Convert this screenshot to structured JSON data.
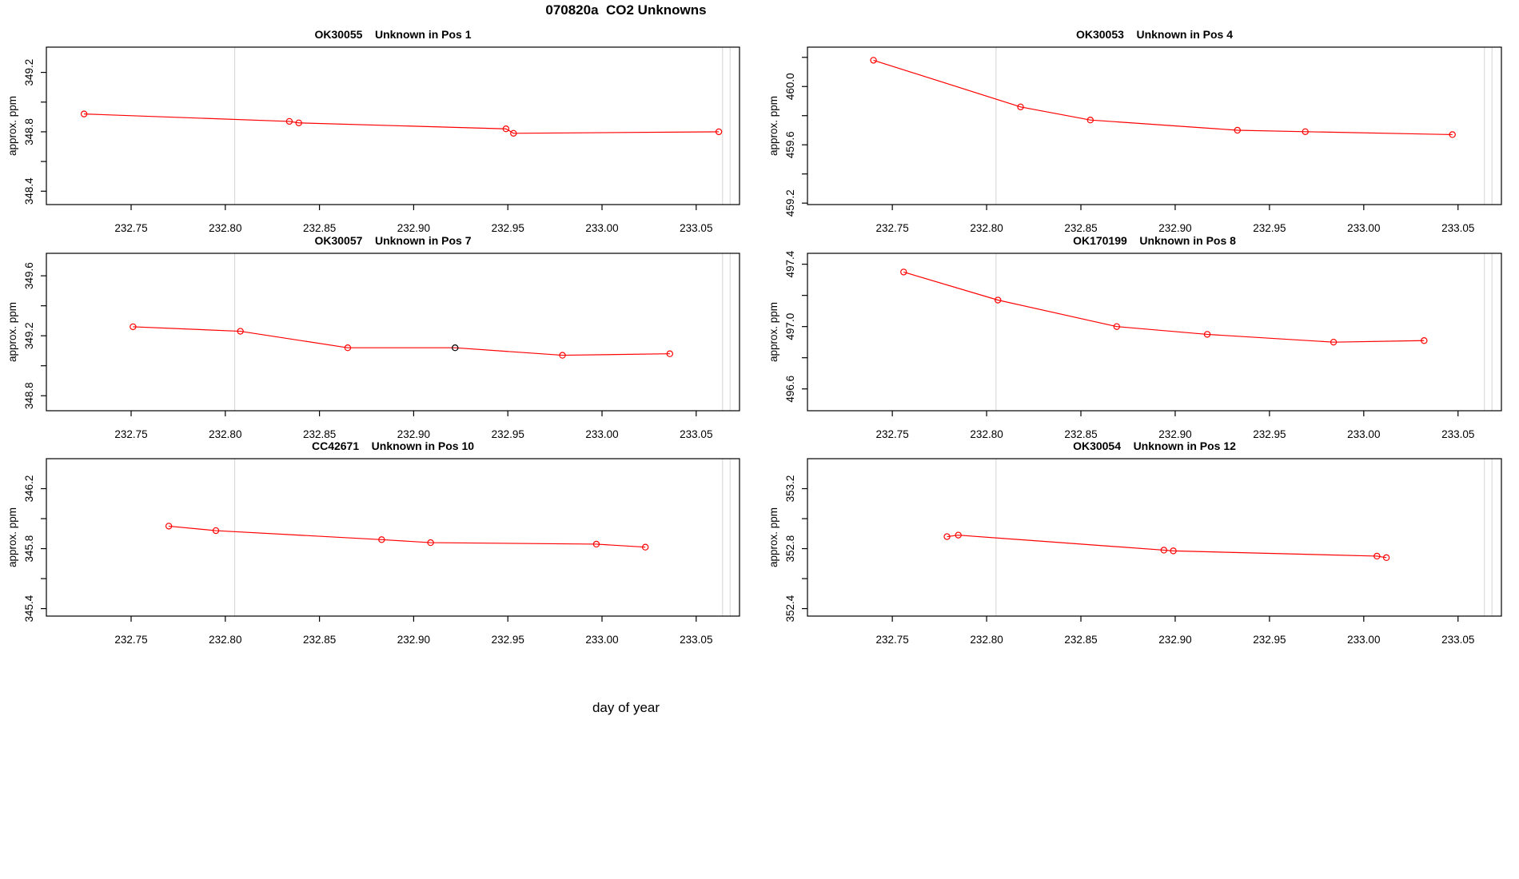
{
  "page": {
    "main_title": "070820a  CO2 Unknowns",
    "bottom_axis_label": "day of year"
  },
  "style": {
    "series_color": "#ff0000",
    "reference_line_color": "#d4d4d4",
    "special_point_color": "#000000",
    "text_color": "#000000",
    "background": "#ffffff"
  },
  "chart_data": [
    {
      "type": "line",
      "title": "OK30055    Unknown in Pos 1",
      "sample_id": "OK30055",
      "position_label": "Unknown in Pos 1",
      "ylabel": "approx. ppm",
      "xlim": [
        232.705,
        233.073
      ],
      "ylim": [
        348.31,
        349.37
      ],
      "x_tick_values": [
        232.75,
        232.8,
        232.85,
        232.9,
        232.95,
        233.0,
        233.05
      ],
      "x_tick_labels": [
        "232.75",
        "232.80",
        "232.85",
        "232.90",
        "232.95",
        "233.00",
        "233.05"
      ],
      "y_tick_values": [
        348.4,
        348.8,
        349.2
      ],
      "y_tick_labels": [
        "348.4",
        "348.8",
        "349.2"
      ],
      "y_minor_tick_values": [
        348.6,
        349.0
      ],
      "reference_lines_x": [
        232.805,
        233.064,
        233.068
      ],
      "x": [
        232.725,
        232.834,
        232.839,
        232.949,
        232.953,
        233.062
      ],
      "y": [
        348.92,
        348.87,
        348.86,
        348.82,
        348.79,
        348.8
      ],
      "special_point_index": null
    },
    {
      "type": "line",
      "title": "OK30053    Unknown in Pos 4",
      "sample_id": "OK30053",
      "position_label": "Unknown in Pos 4",
      "ylabel": "approx. ppm",
      "xlim": [
        232.705,
        233.073
      ],
      "ylim": [
        459.19,
        460.27
      ],
      "x_tick_values": [
        232.75,
        232.8,
        232.85,
        232.9,
        232.95,
        233.0,
        233.05
      ],
      "x_tick_labels": [
        "232.75",
        "232.80",
        "232.85",
        "232.90",
        "232.95",
        "233.00",
        "233.05"
      ],
      "y_tick_values": [
        459.2,
        459.6,
        460.0
      ],
      "y_tick_labels": [
        "459.2",
        "459.6",
        "460.0"
      ],
      "y_minor_tick_values": [
        459.4,
        459.8,
        460.2
      ],
      "reference_lines_x": [
        232.805,
        233.064,
        233.068
      ],
      "x": [
        232.74,
        232.818,
        232.855,
        232.933,
        232.969,
        233.047
      ],
      "y": [
        460.18,
        459.86,
        459.77,
        459.7,
        459.69,
        459.67
      ],
      "special_point_index": null
    },
    {
      "type": "line",
      "title": "OK30057    Unknown in Pos 7",
      "sample_id": "OK30057",
      "position_label": "Unknown in Pos 7",
      "ylabel": "approx. ppm",
      "xlim": [
        232.705,
        233.073
      ],
      "ylim": [
        348.7,
        349.75
      ],
      "x_tick_values": [
        232.75,
        232.8,
        232.85,
        232.9,
        232.95,
        233.0,
        233.05
      ],
      "x_tick_labels": [
        "232.75",
        "232.80",
        "232.85",
        "232.90",
        "232.95",
        "233.00",
        "233.05"
      ],
      "y_tick_values": [
        348.8,
        349.2,
        349.6
      ],
      "y_tick_labels": [
        "348.8",
        "349.2",
        "349.6"
      ],
      "y_minor_tick_values": [
        349.0,
        349.4
      ],
      "reference_lines_x": [
        232.805,
        233.064,
        233.068
      ],
      "x": [
        232.751,
        232.808,
        232.865,
        232.922,
        232.979,
        233.036
      ],
      "y": [
        349.26,
        349.23,
        349.12,
        349.12,
        349.07,
        349.08
      ],
      "special_point_index": 3
    },
    {
      "type": "line",
      "title": "OK170199    Unknown in Pos 8",
      "sample_id": "OK170199",
      "position_label": "Unknown in Pos 8",
      "ylabel": "approx. ppm",
      "xlim": [
        232.705,
        233.073
      ],
      "ylim": [
        496.46,
        497.47
      ],
      "x_tick_values": [
        232.75,
        232.8,
        232.85,
        232.9,
        232.95,
        233.0,
        233.05
      ],
      "x_tick_labels": [
        "232.75",
        "232.80",
        "232.85",
        "232.90",
        "232.95",
        "233.00",
        "233.05"
      ],
      "y_tick_values": [
        496.6,
        497.0,
        497.4
      ],
      "y_tick_labels": [
        "496.6",
        "497.0",
        "497.4"
      ],
      "y_minor_tick_values": [
        496.8,
        497.2
      ],
      "reference_lines_x": [
        232.805,
        233.064,
        233.068
      ],
      "x": [
        232.756,
        232.806,
        232.869,
        232.917,
        232.984,
        233.032
      ],
      "y": [
        497.35,
        497.17,
        497.0,
        496.95,
        496.9,
        496.91
      ],
      "special_point_index": null
    },
    {
      "type": "line",
      "title": "CC42671    Unknown in Pos 10",
      "sample_id": "CC42671",
      "position_label": "Unknown in Pos 10",
      "ylabel": "approx. ppm",
      "xlim": [
        232.705,
        233.073
      ],
      "ylim": [
        345.35,
        346.4
      ],
      "x_tick_values": [
        232.75,
        232.8,
        232.85,
        232.9,
        232.95,
        233.0,
        233.05
      ],
      "x_tick_labels": [
        "232.75",
        "232.80",
        "232.85",
        "232.90",
        "232.95",
        "233.00",
        "233.05"
      ],
      "y_tick_values": [
        345.4,
        345.8,
        346.2
      ],
      "y_tick_labels": [
        "345.4",
        "345.8",
        "346.2"
      ],
      "y_minor_tick_values": [
        345.6,
        346.0
      ],
      "reference_lines_x": [
        232.805,
        233.064,
        233.068
      ],
      "x": [
        232.77,
        232.795,
        232.883,
        232.909,
        232.997,
        233.023
      ],
      "y": [
        345.95,
        345.92,
        345.86,
        345.84,
        345.83,
        345.81
      ],
      "special_point_index": null
    },
    {
      "type": "line",
      "title": "OK30054    Unknown in Pos 12",
      "sample_id": "OK30054",
      "position_label": "Unknown in Pos 12",
      "ylabel": "approx. ppm",
      "xlim": [
        232.705,
        233.073
      ],
      "ylim": [
        352.35,
        353.4
      ],
      "x_tick_values": [
        232.75,
        232.8,
        232.85,
        232.9,
        232.95,
        233.0,
        233.05
      ],
      "x_tick_labels": [
        "232.75",
        "232.80",
        "232.85",
        "232.90",
        "232.95",
        "233.00",
        "233.05"
      ],
      "y_tick_values": [
        352.4,
        352.8,
        353.2
      ],
      "y_tick_labels": [
        "352.4",
        "352.8",
        "353.2"
      ],
      "y_minor_tick_values": [
        352.6,
        353.0
      ],
      "reference_lines_x": [
        232.805,
        233.064,
        233.068
      ],
      "x": [
        232.779,
        232.785,
        232.894,
        232.899,
        233.007,
        233.012
      ],
      "y": [
        352.88,
        352.89,
        352.79,
        352.785,
        352.75,
        352.74
      ],
      "special_point_index": null
    }
  ]
}
